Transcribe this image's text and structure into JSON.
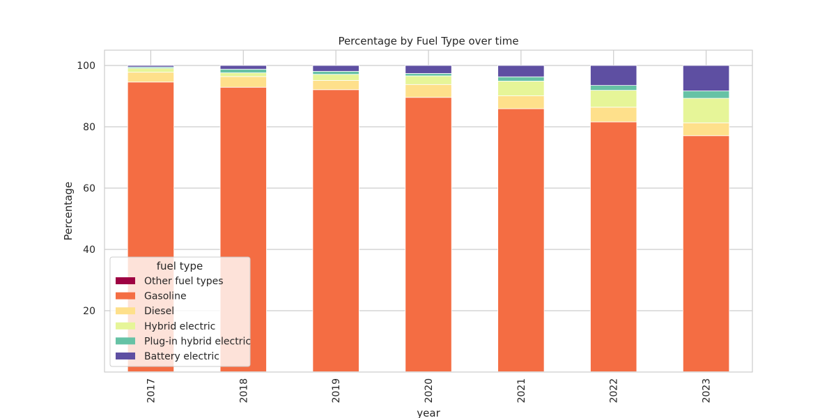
{
  "chart_data": {
    "type": "bar",
    "stacked": true,
    "title": "Percentage by Fuel Type over time",
    "xlabel": "year",
    "ylabel": "Percentage",
    "ylim": [
      0,
      105
    ],
    "yticks": [
      20,
      40,
      60,
      80,
      100
    ],
    "grid": true,
    "legend": {
      "title": "fuel type",
      "placement": "lower-left"
    },
    "categories": [
      "2017",
      "2018",
      "2019",
      "2020",
      "2021",
      "2022",
      "2023"
    ],
    "series": [
      {
        "name": "Other fuel types",
        "color": "#9e0142",
        "values": [
          0.1,
          0.1,
          0.1,
          0.1,
          0.1,
          0.1,
          0.1
        ]
      },
      {
        "name": "Gasoline",
        "color": "#f46d43",
        "values": [
          94.5,
          92.8,
          92.0,
          89.5,
          85.8,
          81.5,
          77.0
        ]
      },
      {
        "name": "Diesel",
        "color": "#fee08b",
        "values": [
          3.2,
          3.5,
          3.0,
          4.2,
          4.2,
          4.8,
          4.2
        ]
      },
      {
        "name": "Hybrid electric",
        "color": "#e6f598",
        "values": [
          1.3,
          1.2,
          2.0,
          2.8,
          4.8,
          5.5,
          8.0
        ]
      },
      {
        "name": "Plug-in hybrid electric",
        "color": "#66c2a5",
        "values": [
          0.4,
          1.2,
          1.0,
          0.8,
          1.4,
          1.6,
          2.4
        ]
      },
      {
        "name": "Battery electric",
        "color": "#5e4fa2",
        "values": [
          0.5,
          1.2,
          1.9,
          2.6,
          3.7,
          6.5,
          8.3
        ]
      }
    ]
  }
}
